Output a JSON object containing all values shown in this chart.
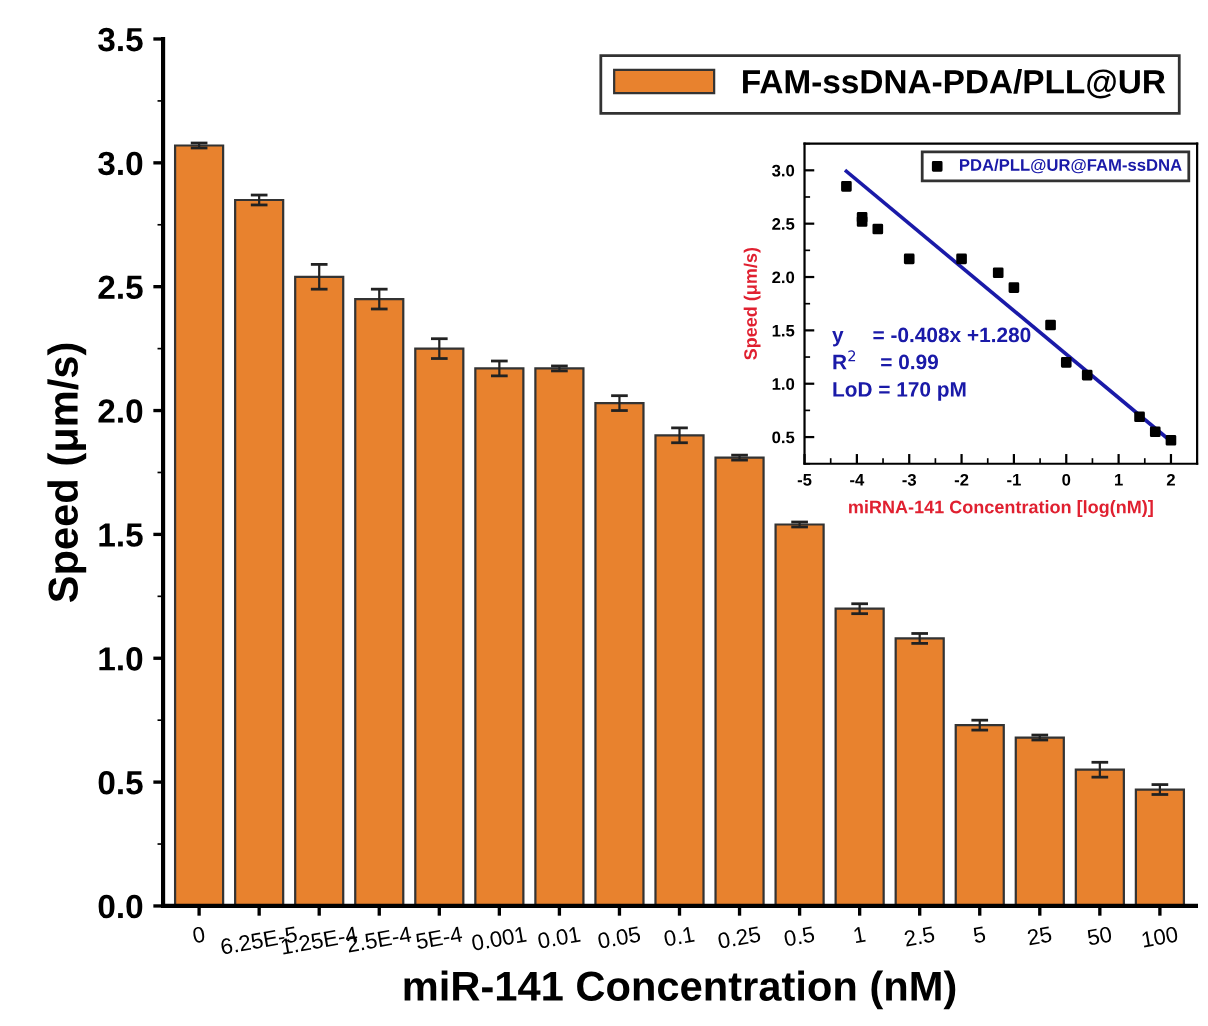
{
  "chart_data": [
    {
      "type": "bar",
      "xlabel": "miR-141 Concentration (nM)",
      "ylabel": "Speed (μm/s)",
      "categories": [
        "0",
        "6.25E-5",
        "1.25E-4",
        "2.5E-4",
        "5E-4",
        "0.001",
        "0.01",
        "0.05",
        "0.1",
        "0.25",
        "0.5",
        "1",
        "2.5",
        "5",
        "25",
        "50",
        "100"
      ],
      "series": [
        {
          "name": "FAM-ssDNA-PDA/PLL@UR",
          "color": "#e8822e",
          "values": [
            3.07,
            2.85,
            2.54,
            2.45,
            2.25,
            2.17,
            2.17,
            2.03,
            1.9,
            1.81,
            1.54,
            1.2,
            1.08,
            0.73,
            0.68,
            0.55,
            0.47
          ],
          "errors": [
            0.01,
            0.02,
            0.05,
            0.04,
            0.04,
            0.03,
            0.01,
            0.03,
            0.03,
            0.01,
            0.01,
            0.02,
            0.02,
            0.02,
            0.01,
            0.03,
            0.02
          ]
        }
      ],
      "ylim": [
        0,
        3.5
      ],
      "yticks": [
        {
          "value": 0,
          "label": "0.0"
        },
        0.5,
        {
          "value": 1,
          "label": "1.0"
        },
        1.5,
        {
          "value": 2,
          "label": "2.0"
        },
        2.5,
        {
          "value": 3,
          "label": "3.0"
        },
        3.5
      ],
      "grid": false,
      "legend": "top right"
    },
    {
      "type": "scatter",
      "xlabel": "miRNA-141 Concentration [log(nM)]",
      "ylabel": "Speed (μm/s)",
      "series": [
        {
          "name": "PDA/PLL@UR@FAM-ssDNA",
          "type": "scatter",
          "color": "#000000",
          "marker": "square",
          "x": [
            -4.2,
            -3.9,
            -3.9,
            -3.6,
            -3.0,
            -2.0,
            -1.3,
            -1.0,
            -0.3,
            0.0,
            0.4,
            1.4,
            1.7,
            2.0
          ],
          "values": [
            2.85,
            2.56,
            2.52,
            2.45,
            2.17,
            2.17,
            2.04,
            1.9,
            1.55,
            1.2,
            1.08,
            0.69,
            0.55,
            0.47
          ]
        },
        {
          "type": "line",
          "color": "#1a1aa8",
          "x": [
            -4.2,
            2.0
          ],
          "values": [
            2.99,
            0.46
          ]
        }
      ],
      "annotations": [
        "y     = -0.408x +1.280",
        "R$^{2}$    = 0.99",
        "LoD = 170 pM"
      ],
      "xlim": [
        -5,
        2.5
      ],
      "xticks": [
        -5,
        -4,
        -3,
        -2,
        -1,
        0,
        1,
        2
      ],
      "ylim": [
        0.25,
        3.25
      ],
      "yticks": [
        0.5,
        {
          "value": 1,
          "label": "1.0"
        },
        1.5,
        {
          "value": 2,
          "label": "2.0"
        },
        2.5,
        {
          "value": 3,
          "label": "3.0"
        }
      ],
      "grid": false,
      "legend": "top right"
    }
  ]
}
